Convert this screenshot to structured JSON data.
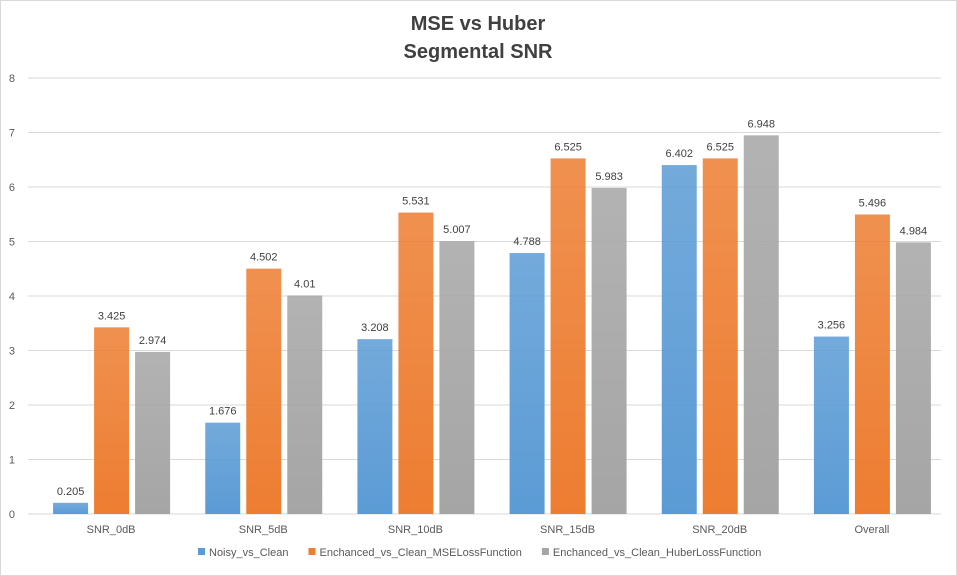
{
  "chart_data": {
    "type": "bar",
    "title": "MSE vs Huber",
    "subtitle": "Segmental SNR",
    "categories": [
      "SNR_0dB",
      "SNR_5dB",
      "SNR_10dB",
      "SNR_15dB",
      "SNR_20dB",
      "Overall"
    ],
    "series": [
      {
        "name": "Noisy_vs_Clean",
        "color": "#5B9BD5",
        "values": [
          0.205,
          1.676,
          3.208,
          4.788,
          6.402,
          3.256
        ],
        "labels": [
          "0.205",
          "1.676",
          "3.208",
          "4.788",
          "6.402",
          "3.256"
        ]
      },
      {
        "name": "Enchanced_vs_Clean_MSELossFunction",
        "color": "#ED7D31",
        "values": [
          3.425,
          4.502,
          5.531,
          6.525,
          6.525,
          5.496
        ],
        "labels": [
          "3.425",
          "4.502",
          "5.531",
          "6.525",
          "6.525",
          "5.496"
        ]
      },
      {
        "name": "Enchanced_vs_Clean_HuberLossFunction",
        "color": "#A5A5A5",
        "values": [
          2.974,
          4.01,
          5.007,
          5.983,
          6.948,
          4.984
        ],
        "labels": [
          "2.974",
          "4.01",
          "5.007",
          "5.983",
          "6.948",
          "4.984"
        ]
      }
    ],
    "ylim": [
      0,
      8
    ],
    "yticks": [
      "0",
      "1",
      "2",
      "3",
      "4",
      "5",
      "6",
      "7",
      "8"
    ],
    "grid": true,
    "legend_position": "bottom",
    "xlabel": "",
    "ylabel": ""
  }
}
